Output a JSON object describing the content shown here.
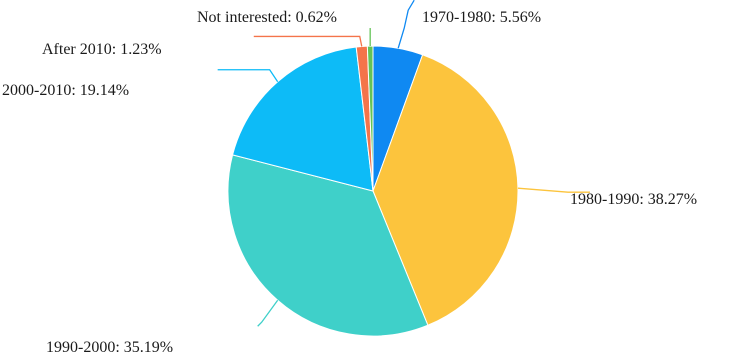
{
  "chart_data": {
    "type": "pie",
    "title": "",
    "start_angle_deg": 0,
    "direction": "clockwise",
    "slices": [
      {
        "name": "1970-1980",
        "value": 5.56,
        "label": "1970-1980: 5.56%",
        "color": "#0f89f2"
      },
      {
        "name": "1980-1990",
        "value": 38.27,
        "label": "1980-1990: 38.27%",
        "color": "#fcc43d"
      },
      {
        "name": "1990-2000",
        "value": 35.19,
        "label": "1990-2000: 35.19%",
        "color": "#3fd0c9"
      },
      {
        "name": "2000-2010",
        "value": 19.14,
        "label": "2000-2010: 19.14%",
        "color": "#0dbbf7"
      },
      {
        "name": "After 2010",
        "value": 1.23,
        "label": "After 2010: 1.23%",
        "color": "#f4744a"
      },
      {
        "name": "Not interested",
        "value": 0.62,
        "label": "Not interested: 0.62%",
        "color": "#63c456"
      }
    ]
  }
}
